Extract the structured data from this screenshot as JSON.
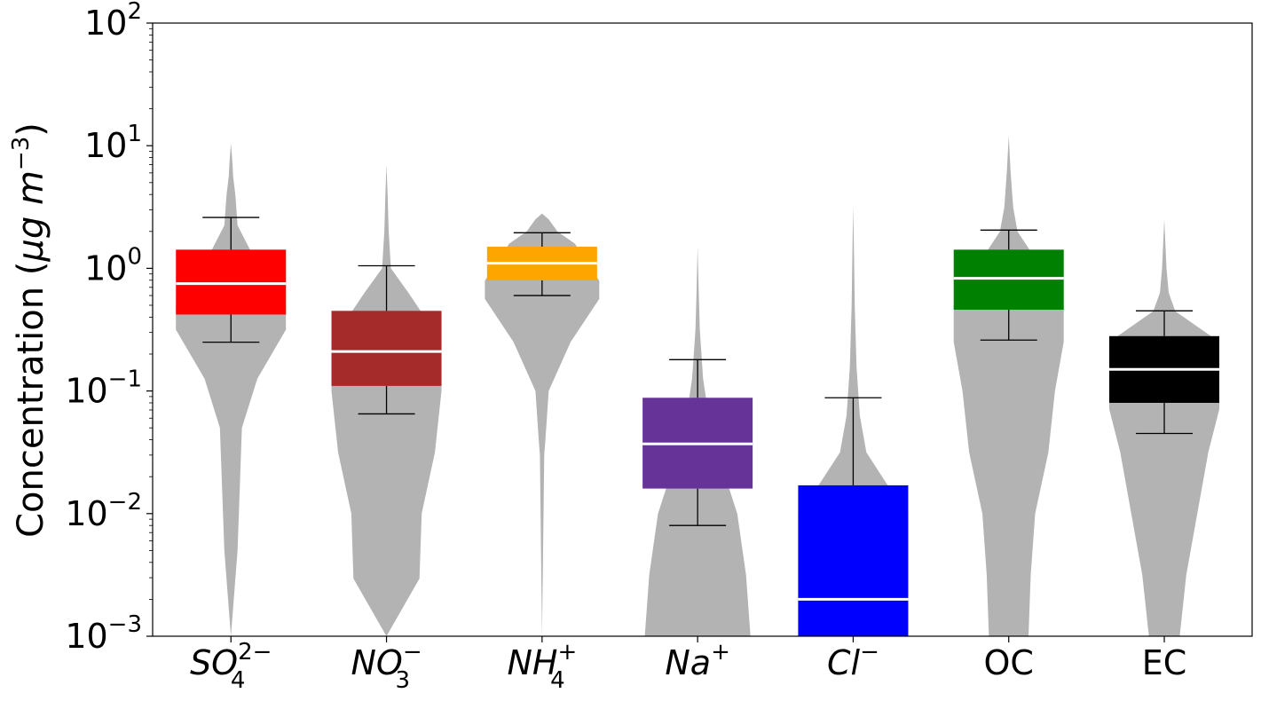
{
  "chart_data": {
    "type": "box-violin",
    "title": "",
    "xlabel": "",
    "ylabel": {
      "prefix": "Concentration (",
      "mu": "μ",
      "g": "g m",
      "exp": "−3",
      "suffix": ")"
    },
    "yscale": "log",
    "ylim": [
      0.001,
      100
    ],
    "yticks": [
      {
        "value": 0.001,
        "base": "10",
        "exp": "−3"
      },
      {
        "value": 0.01,
        "base": "10",
        "exp": "−2"
      },
      {
        "value": 0.1,
        "base": "10",
        "exp": "−1"
      },
      {
        "value": 1,
        "base": "10",
        "exp": "0"
      },
      {
        "value": 10,
        "base": "10",
        "exp": "1"
      },
      {
        "value": 100,
        "base": "10",
        "exp": "2"
      }
    ],
    "violin_color": "#b3b3b3",
    "median_color": "#ffffff",
    "grid": false,
    "legend": "none",
    "categories": [
      {
        "label": {
          "base": "SO",
          "sub": "4",
          "sup": "2−"
        },
        "color": "#ff0000",
        "q1": 0.42,
        "median": 0.75,
        "q3": 1.42,
        "whisker_low": 0.25,
        "whisker_high": 2.6,
        "violin_min": 0.037,
        "violin_max": 10.5,
        "violin_shape": [
          [
            -3.0,
            0.0
          ],
          [
            -2.3,
            0.03
          ],
          [
            -1.3,
            0.05
          ],
          [
            -0.9,
            0.12
          ],
          [
            -0.5,
            0.25
          ],
          [
            -0.3,
            0.25
          ],
          [
            0.0,
            0.13
          ],
          [
            0.35,
            0.03
          ],
          [
            0.6,
            0.02
          ],
          [
            0.75,
            0.01
          ],
          [
            0.85,
            0.007
          ],
          [
            0.93,
            0.004
          ],
          [
            1.02,
            0.0
          ]
        ]
      },
      {
        "label": {
          "base": "NO",
          "sub": "3",
          "sup": "−"
        },
        "color": "#a52a2a",
        "q1": 0.11,
        "median": 0.21,
        "q3": 0.45,
        "whisker_low": 0.065,
        "whisker_high": 1.05,
        "violin_min": 0.003,
        "violin_max": 7,
        "violin_shape": [
          [
            -3.0,
            0.0
          ],
          [
            -2.53,
            0.15
          ],
          [
            -2.0,
            0.16
          ],
          [
            -1.5,
            0.22
          ],
          [
            -1.0,
            0.25
          ],
          [
            -0.6,
            0.25
          ],
          [
            -0.2,
            0.1
          ],
          [
            0.0,
            0.02
          ],
          [
            0.3,
            0.01
          ],
          [
            0.6,
            0.005
          ],
          [
            0.845,
            0.0
          ]
        ]
      },
      {
        "label": {
          "base": "NH",
          "sub": "4",
          "sup": "+"
        },
        "color": "#ffa500",
        "q1": 0.8,
        "median": 1.1,
        "q3": 1.5,
        "whisker_low": 0.6,
        "whisker_high": 1.95,
        "violin_min": 0.03,
        "violin_max": 2.8,
        "violin_shape": [
          [
            -3.0,
            0.0
          ],
          [
            -1.52,
            0.01
          ],
          [
            -1.4,
            0.015
          ],
          [
            -1.0,
            0.03
          ],
          [
            -0.6,
            0.13
          ],
          [
            -0.25,
            0.26
          ],
          [
            -0.1,
            0.26
          ],
          [
            0.05,
            0.2
          ],
          [
            0.2,
            0.15
          ],
          [
            0.3,
            0.07
          ],
          [
            0.4,
            0.03
          ],
          [
            0.447,
            0.0
          ]
        ]
      },
      {
        "label": {
          "base": "Na",
          "sub": "",
          "sup": "+"
        },
        "color": "#663399",
        "q1": 0.016,
        "median": 0.037,
        "q3": 0.088,
        "whisker_low": 0.008,
        "whisker_high": 0.18,
        "violin_min": 0.001,
        "violin_max": 1.5,
        "violin_shape": [
          [
            -3.0,
            0.24
          ],
          [
            -2.5,
            0.22
          ],
          [
            -2.0,
            0.18
          ],
          [
            -1.5,
            0.09
          ],
          [
            -1.2,
            0.05
          ],
          [
            -0.9,
            0.025
          ],
          [
            -0.5,
            0.01
          ],
          [
            -0.2,
            0.005
          ],
          [
            0.176,
            0.0
          ]
        ]
      },
      {
        "label": {
          "base": "Cl",
          "sub": "",
          "sup": "−"
        },
        "color": "#0000ff",
        "q1": 0.001,
        "median": 0.002,
        "q3": 0.017,
        "whisker_low": 0.001,
        "whisker_high": 0.088,
        "violin_min": 0.001,
        "violin_max": 3.2,
        "violin_shape": [
          [
            -3.0,
            0.25
          ],
          [
            -2.0,
            0.25
          ],
          [
            -1.75,
            0.15
          ],
          [
            -1.5,
            0.06
          ],
          [
            -1.2,
            0.03
          ],
          [
            -0.8,
            0.015
          ],
          [
            -0.3,
            0.007
          ],
          [
            0.2,
            0.003
          ],
          [
            0.505,
            0.0
          ]
        ]
      },
      {
        "label": {
          "base": "OC",
          "sub": "",
          "sup": ""
        },
        "color": "#008000",
        "q1": 0.46,
        "median": 0.83,
        "q3": 1.42,
        "whisker_low": 0.26,
        "whisker_high": 2.05,
        "violin_min": 0.001,
        "violin_max": 12,
        "violin_shape": [
          [
            -3.0,
            0.09
          ],
          [
            -2.5,
            0.1
          ],
          [
            -2.0,
            0.12
          ],
          [
            -1.5,
            0.18
          ],
          [
            -1.0,
            0.21
          ],
          [
            -0.6,
            0.25
          ],
          [
            -0.3,
            0.25
          ],
          [
            0.0,
            0.15
          ],
          [
            0.3,
            0.04
          ],
          [
            0.5,
            0.02
          ],
          [
            0.8,
            0.008
          ],
          [
            1.08,
            0.0
          ]
        ]
      },
      {
        "label": {
          "base": "EC",
          "sub": "",
          "sup": ""
        },
        "color": "#000000",
        "q1": 0.08,
        "median": 0.15,
        "q3": 0.28,
        "whisker_low": 0.045,
        "whisker_high": 0.45,
        "violin_min": 0.001,
        "violin_max": 2.5,
        "violin_shape": [
          [
            -3.0,
            0.07
          ],
          [
            -2.5,
            0.1
          ],
          [
            -2.0,
            0.15
          ],
          [
            -1.5,
            0.2
          ],
          [
            -1.15,
            0.25
          ],
          [
            -0.6,
            0.25
          ],
          [
            -0.35,
            0.05
          ],
          [
            -0.2,
            0.02
          ],
          [
            0.0,
            0.01
          ],
          [
            0.4,
            0.0
          ]
        ]
      }
    ]
  }
}
